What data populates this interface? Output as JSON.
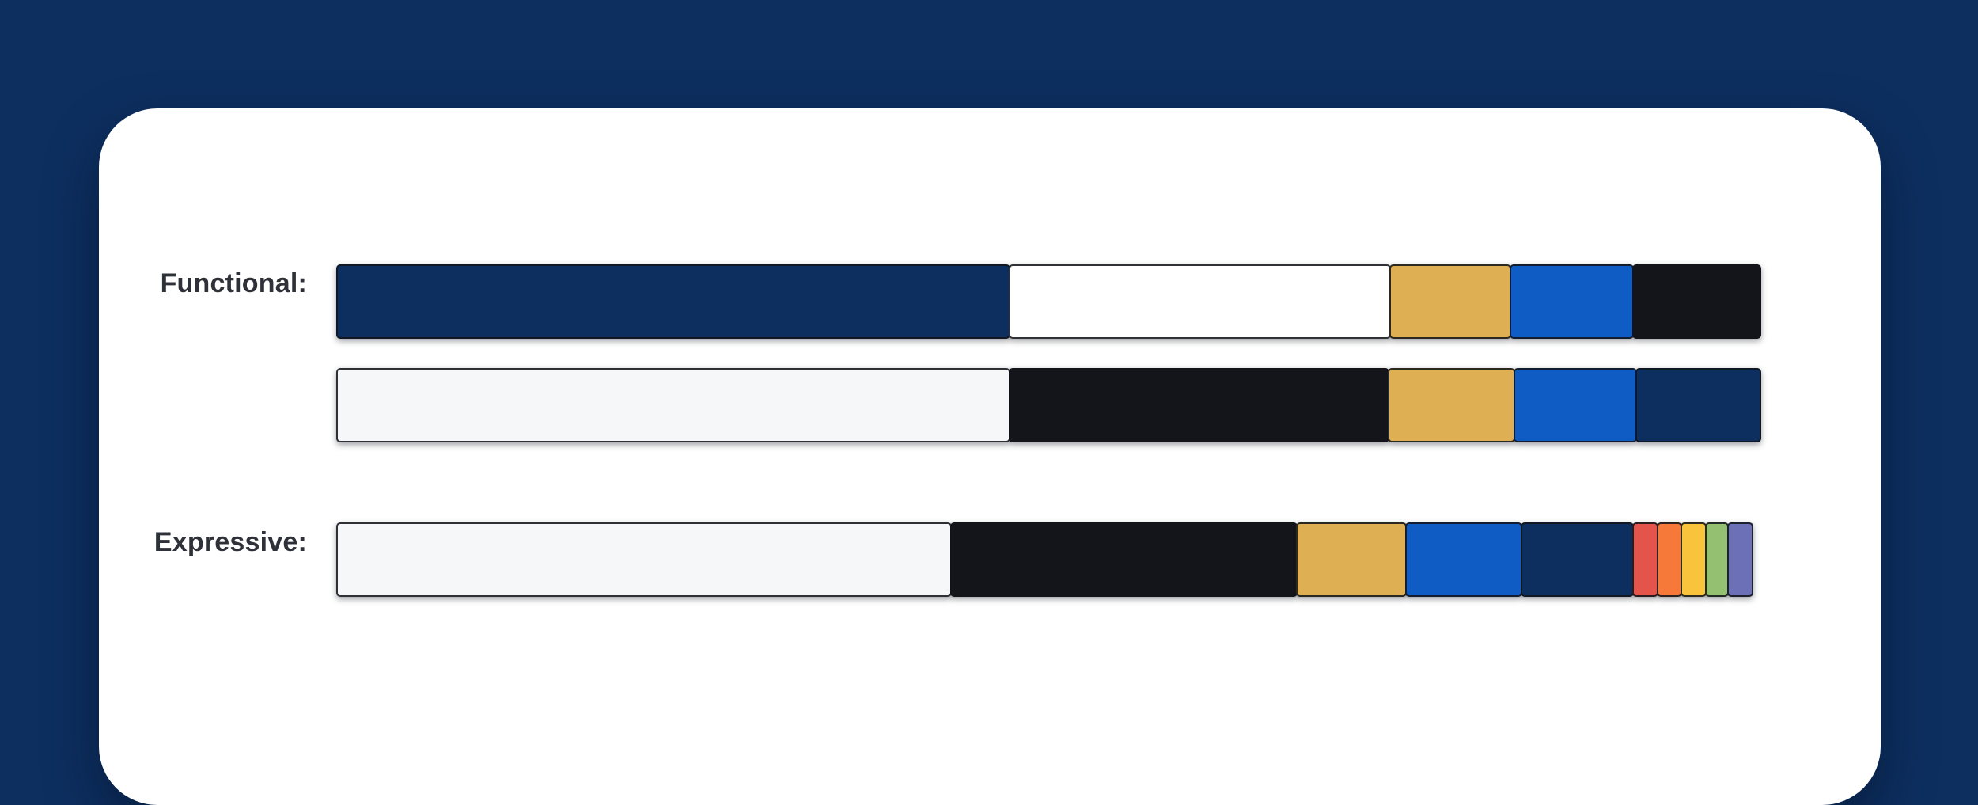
{
  "page": {
    "background_color": "#0d2f60",
    "card_color": "#ffffff",
    "label_text_color": "#2e3137",
    "segment_border_color": "#15171c"
  },
  "labels": {
    "functional": "Functional:",
    "expressive": "Expressive:"
  },
  "chart_data": {
    "type": "bar",
    "subtype": "horizontal-stacked-color-proportions",
    "title": "",
    "legend": false,
    "axes": false,
    "rows": [
      {
        "group_label": "Functional:",
        "name": "functional-primary",
        "segments": [
          {
            "color": "navy",
            "hex": "#0c2f60",
            "percent": 47.1
          },
          {
            "color": "white",
            "hex": "#ffffff",
            "percent": 26.7
          },
          {
            "color": "gold",
            "hex": "#dfaf53",
            "percent": 8.5
          },
          {
            "color": "blue",
            "hex": "#105cc5",
            "percent": 8.7
          },
          {
            "color": "black",
            "hex": "#13151a",
            "percent": 9.0
          }
        ]
      },
      {
        "group_label": "",
        "name": "functional-secondary",
        "segments": [
          {
            "color": "off-white",
            "hex": "#f6f7f9",
            "percent": 47.1
          },
          {
            "color": "black",
            "hex": "#13151a",
            "percent": 26.6
          },
          {
            "color": "gold",
            "hex": "#dfaf53",
            "percent": 8.9
          },
          {
            "color": "blue",
            "hex": "#105cc5",
            "percent": 8.6
          },
          {
            "color": "navy",
            "hex": "#0c2f60",
            "percent": 8.8
          }
        ]
      },
      {
        "group_label": "Expressive:",
        "name": "expressive",
        "segments": [
          {
            "color": "off-white",
            "hex": "#f6f7f9",
            "percent": 43.0
          },
          {
            "color": "black",
            "hex": "#13151a",
            "percent": 24.3
          },
          {
            "color": "gold",
            "hex": "#dfaf53",
            "percent": 7.7
          },
          {
            "color": "blue",
            "hex": "#105cc5",
            "percent": 8.2
          },
          {
            "color": "navy",
            "hex": "#0c2f60",
            "percent": 7.9
          },
          {
            "color": "red",
            "hex": "#e5544a",
            "percent": 1.8
          },
          {
            "color": "orange",
            "hex": "#f7793a",
            "percent": 1.8
          },
          {
            "color": "yellow",
            "hex": "#f9c43c",
            "percent": 1.8
          },
          {
            "color": "green",
            "hex": "#93c171",
            "percent": 1.7
          },
          {
            "color": "purple",
            "hex": "#6c70b7",
            "percent": 1.8
          }
        ]
      }
    ]
  }
}
